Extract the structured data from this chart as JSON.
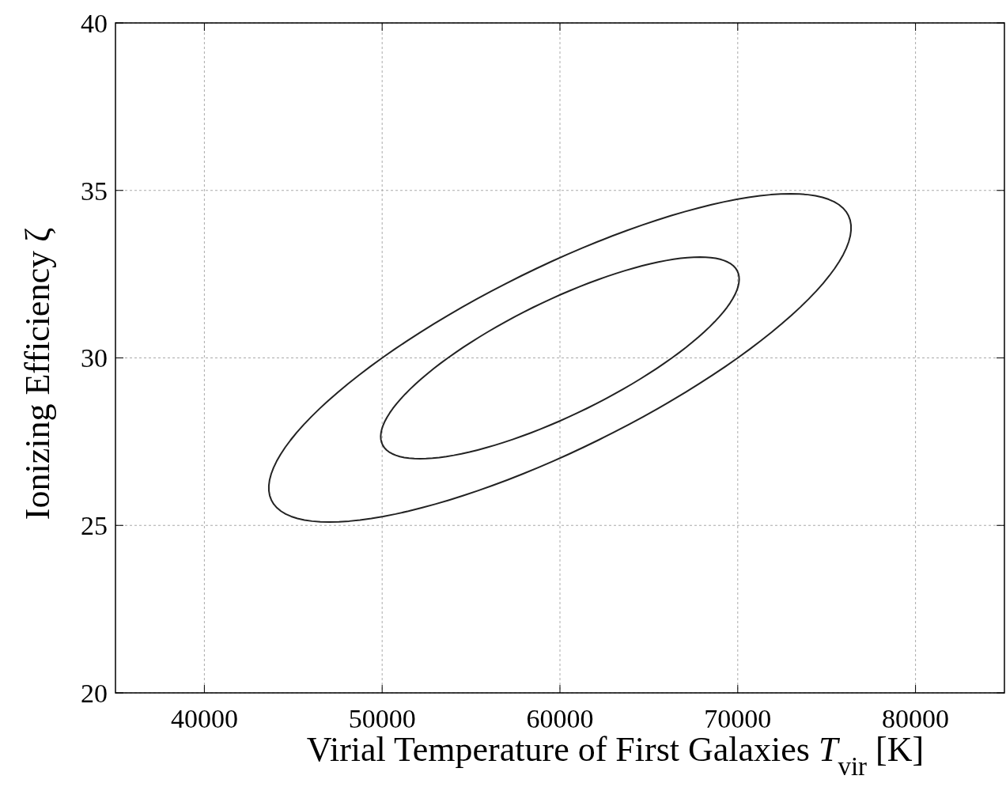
{
  "chart_data": {
    "type": "line",
    "xlabel": "Virial Temperature of First Galaxies T$_{vir}$ [K]",
    "ylabel": "Ionizing Efficiency ζ",
    "xlim": [
      35000,
      85000
    ],
    "ylim": [
      20,
      40
    ],
    "xticks": [
      40000,
      50000,
      60000,
      70000,
      80000
    ],
    "yticks": [
      20,
      25,
      30,
      35,
      40
    ],
    "grid": true
  }
}
